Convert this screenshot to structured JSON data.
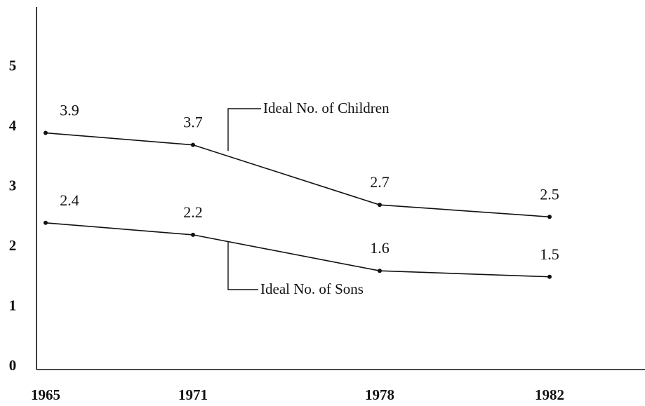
{
  "chart_data": {
    "type": "line",
    "categories": [
      "1965",
      "1971",
      "1978",
      "1982"
    ],
    "series": [
      {
        "name": "Ideal No. of Children",
        "color": "#111111",
        "values": [
          3.9,
          3.7,
          2.7,
          2.5
        ]
      },
      {
        "name": "Ideal No. of Sons",
        "color": "#111111",
        "values": [
          2.4,
          2.2,
          1.6,
          1.5
        ]
      }
    ],
    "ylim": [
      0,
      6
    ],
    "yticks": [
      0,
      1,
      2,
      3,
      4,
      5
    ],
    "grid": false
  }
}
